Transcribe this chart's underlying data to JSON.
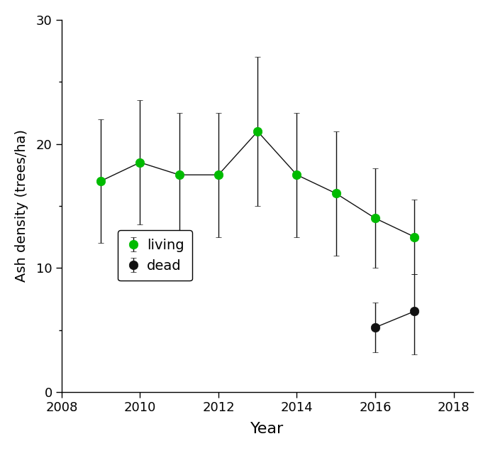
{
  "living_years": [
    2009,
    2010,
    2011,
    2012,
    2013,
    2014,
    2015,
    2016,
    2017
  ],
  "living_values": [
    17.0,
    18.5,
    17.5,
    17.5,
    21.0,
    17.5,
    16.0,
    14.0,
    12.5
  ],
  "living_err_low": [
    5.0,
    5.0,
    5.0,
    5.0,
    6.0,
    5.0,
    5.0,
    4.0,
    3.0
  ],
  "living_err_high": [
    5.0,
    5.0,
    5.0,
    5.0,
    6.0,
    5.0,
    5.0,
    4.0,
    3.0
  ],
  "dead_years": [
    2016,
    2017
  ],
  "dead_values": [
    5.2,
    6.5
  ],
  "dead_err_low": [
    2.0,
    3.5
  ],
  "dead_err_high": [
    2.0,
    3.0
  ],
  "living_color": "#00bb00",
  "dead_color": "#111111",
  "line_color": "#111111",
  "xlabel": "Year",
  "ylabel": "Ash density (trees/ha)",
  "xlim": [
    2008,
    2018.5
  ],
  "ylim": [
    0,
    30
  ],
  "yticks_major": [
    0,
    10,
    20,
    30
  ],
  "yticks_minor": [
    5,
    15,
    25
  ],
  "xticks": [
    2008,
    2010,
    2012,
    2014,
    2016,
    2018
  ],
  "legend_living": "living",
  "legend_dead": "dead",
  "marker_size": 9,
  "line_width": 1.0,
  "capsize": 3,
  "elinewidth": 1.0
}
